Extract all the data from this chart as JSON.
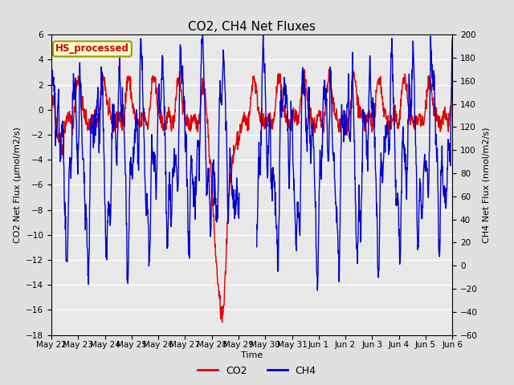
{
  "title": "CO2, CH4 Net Fluxes",
  "xlabel": "Time",
  "ylabel_left": "CO2 Net Flux (μmol/m2/s)",
  "ylabel_right": "CH4 Net Flux (nmol/m2/s)",
  "annotation": "HS_processed",
  "annotation_facecolor": "#FFFFCC",
  "annotation_edgecolor": "#999900",
  "annotation_textcolor": "#CC0000",
  "ylim_left": [
    -18,
    6
  ],
  "ylim_right": [
    -60,
    200
  ],
  "yticks_left": [
    -18,
    -16,
    -14,
    -12,
    -10,
    -8,
    -6,
    -4,
    -2,
    0,
    2,
    4,
    6
  ],
  "yticks_right": [
    -60,
    -40,
    -20,
    0,
    20,
    40,
    60,
    80,
    100,
    120,
    140,
    160,
    180,
    200
  ],
  "xtick_labels": [
    "May 22",
    "May 23",
    "May 24",
    "May 25",
    "May 26",
    "May 27",
    "May 28",
    "May 29",
    "May 30",
    "May 31",
    "Jun 1",
    "Jun 2",
    "Jun 3",
    "Jun 4",
    "Jun 5",
    "Jun 6"
  ],
  "co2_color": "#DD0000",
  "ch4_color": "#0000CC",
  "linewidth": 1.0,
  "fig_facecolor": "#E0E0E0",
  "plot_facecolor": "#E8E8E8",
  "title_fontsize": 11,
  "label_fontsize": 8,
  "tick_fontsize": 7.5
}
